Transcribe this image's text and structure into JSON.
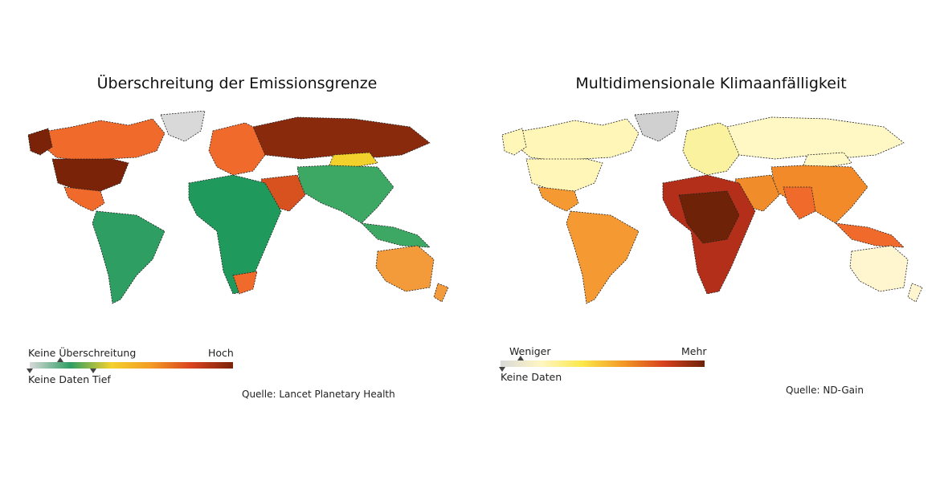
{
  "left_map": {
    "title": "Überschreitung der Emissionsgrenze",
    "legend": {
      "top_left": "Keine Überschreitung",
      "top_right": "Hoch",
      "bottom_left": "Keine Daten",
      "bottom_mid": "Tief",
      "colors": [
        "#d9d9d9",
        "#2e9e63",
        "#f3d12c",
        "#f39a25",
        "#d8421f",
        "#7a2309"
      ]
    },
    "source": "Quelle: Lancet Planetary Health",
    "colors": {
      "north_america": "#7a2309",
      "canada": "#f06a2c",
      "greenland": "#d9d9d9",
      "latin_america": "#2e9e63",
      "europe": "#f06a2c",
      "russia": "#8a2a0d",
      "africa": "#1f9a5c",
      "middle_east": "#d8521f",
      "asia": "#3da864",
      "mongolia": "#f3d12c",
      "australia": "#f39a3b"
    }
  },
  "right_map": {
    "title": "Multidimensionale Klimaanfälligkeit",
    "legend": {
      "top_left": "Weniger",
      "top_right": "Mehr",
      "bottom_left": "Keine Daten",
      "colors": [
        "#d9d9d9",
        "#fff6c2",
        "#fbe84a",
        "#f39a25",
        "#d8421f",
        "#6e2207"
      ]
    },
    "source": "Quelle: ND-Gain",
    "colors": {
      "north_america": "#fff6b8",
      "greenland": "#d0d0d0",
      "latin_america": "#f59a33",
      "europe": "#fbf2a0",
      "russia": "#fff8c4",
      "africa": "#b32f1a",
      "central_africa": "#6e2207",
      "middle_east": "#f08d2a",
      "south_asia": "#f06a2c",
      "asia": "#f38a2a",
      "australia": "#fff6cf"
    }
  }
}
